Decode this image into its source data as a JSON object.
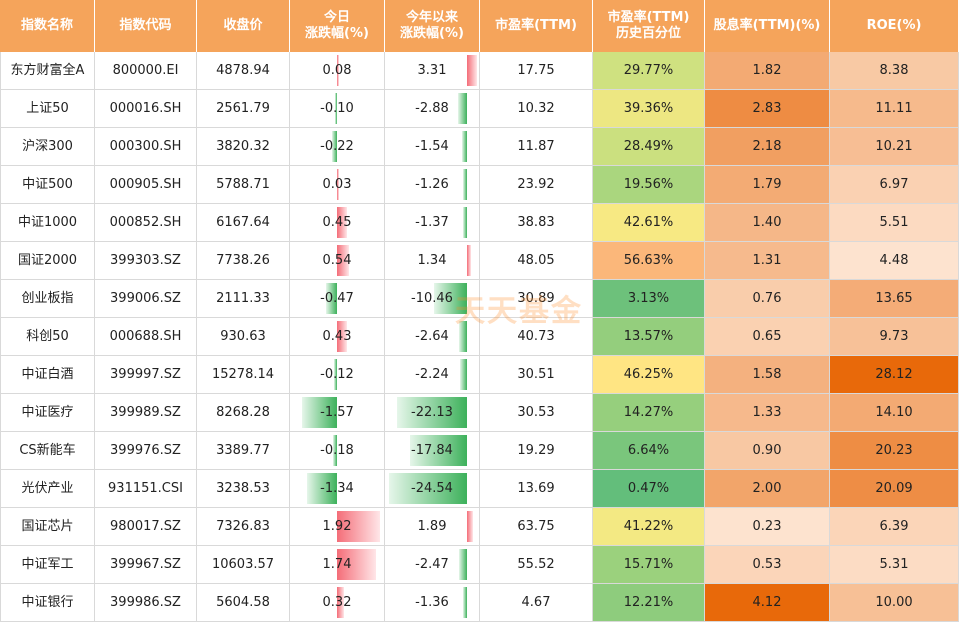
{
  "header": {
    "name": "指数名称",
    "code": "指数代码",
    "close": "收盘价",
    "day_change": "今日\n涨跌幅(%)",
    "ytd_change": "今年以来\n涨跌幅(%)",
    "pe": "市盈率(TTM)",
    "pe_pct": "市盈率(TTM)\n历史百分位",
    "dividend": "股息率(TTM)(%)",
    "roe": "ROE(%)"
  },
  "watermark": "天天基金",
  "colors": {
    "header_bg": "#f5a45b",
    "up_bar": "#f46d78",
    "down_bar": "#3db15b",
    "pct_low": "#63be7b",
    "pct_mid": "#ffeb84",
    "pct_high": "#fbb77a",
    "div_low": "#fde3cf",
    "div_high": "#e8690a"
  },
  "rows": [
    {
      "name": "东方财富全A",
      "code": "800000.EI",
      "close": "4878.94",
      "day": "0.08",
      "ytd": "3.31",
      "pe": "17.75",
      "pe_pct": "29.77%",
      "div": "1.82",
      "roe": "8.38"
    },
    {
      "name": "上证50",
      "code": "000016.SH",
      "close": "2561.79",
      "day": "-0.10",
      "ytd": "-2.88",
      "pe": "10.32",
      "pe_pct": "39.36%",
      "div": "2.83",
      "roe": "11.11"
    },
    {
      "name": "沪深300",
      "code": "000300.SH",
      "close": "3820.32",
      "day": "-0.22",
      "ytd": "-1.54",
      "pe": "11.87",
      "pe_pct": "28.49%",
      "div": "2.18",
      "roe": "10.21"
    },
    {
      "name": "中证500",
      "code": "000905.SH",
      "close": "5788.71",
      "day": "0.03",
      "ytd": "-1.26",
      "pe": "23.92",
      "pe_pct": "19.56%",
      "div": "1.79",
      "roe": "6.97"
    },
    {
      "name": "中证1000",
      "code": "000852.SH",
      "close": "6167.64",
      "day": "0.45",
      "ytd": "-1.37",
      "pe": "38.83",
      "pe_pct": "42.61%",
      "div": "1.40",
      "roe": "5.51"
    },
    {
      "name": "国证2000",
      "code": "399303.SZ",
      "close": "7738.26",
      "day": "0.54",
      "ytd": "1.34",
      "pe": "48.05",
      "pe_pct": "56.63%",
      "div": "1.31",
      "roe": "4.48"
    },
    {
      "name": "创业板指",
      "code": "399006.SZ",
      "close": "2111.33",
      "day": "-0.47",
      "ytd": "-10.46",
      "pe": "30.89",
      "pe_pct": "3.13%",
      "div": "0.76",
      "roe": "13.65"
    },
    {
      "name": "科创50",
      "code": "000688.SH",
      "close": "930.63",
      "day": "0.43",
      "ytd": "-2.64",
      "pe": "40.73",
      "pe_pct": "13.57%",
      "div": "0.65",
      "roe": "9.73"
    },
    {
      "name": "中证白酒",
      "code": "399997.SZ",
      "close": "15278.14",
      "day": "-0.12",
      "ytd": "-2.24",
      "pe": "30.51",
      "pe_pct": "46.25%",
      "div": "1.58",
      "roe": "28.12"
    },
    {
      "name": "中证医疗",
      "code": "399989.SZ",
      "close": "8268.28",
      "day": "-1.57",
      "ytd": "-22.13",
      "pe": "30.53",
      "pe_pct": "14.27%",
      "div": "1.33",
      "roe": "14.10"
    },
    {
      "name": "CS新能车",
      "code": "399976.SZ",
      "close": "3389.77",
      "day": "-0.18",
      "ytd": "-17.84",
      "pe": "19.29",
      "pe_pct": "6.64%",
      "div": "0.90",
      "roe": "20.23"
    },
    {
      "name": "光伏产业",
      "code": "931151.CSI",
      "close": "3238.53",
      "day": "-1.34",
      "ytd": "-24.54",
      "pe": "13.69",
      "pe_pct": "0.47%",
      "div": "2.00",
      "roe": "20.09"
    },
    {
      "name": "国证芯片",
      "code": "980017.SZ",
      "close": "7326.83",
      "day": "1.92",
      "ytd": "1.89",
      "pe": "63.75",
      "pe_pct": "41.22%",
      "div": "0.23",
      "roe": "6.39"
    },
    {
      "name": "中证军工",
      "code": "399967.SZ",
      "close": "10603.57",
      "day": "1.74",
      "ytd": "-2.47",
      "pe": "55.52",
      "pe_pct": "15.71%",
      "div": "0.53",
      "roe": "5.31"
    },
    {
      "name": "中证银行",
      "code": "399986.SZ",
      "close": "5604.58",
      "day": "0.32",
      "ytd": "-1.36",
      "pe": "4.67",
      "pe_pct": "12.21%",
      "div": "4.12",
      "roe": "10.00"
    }
  ]
}
